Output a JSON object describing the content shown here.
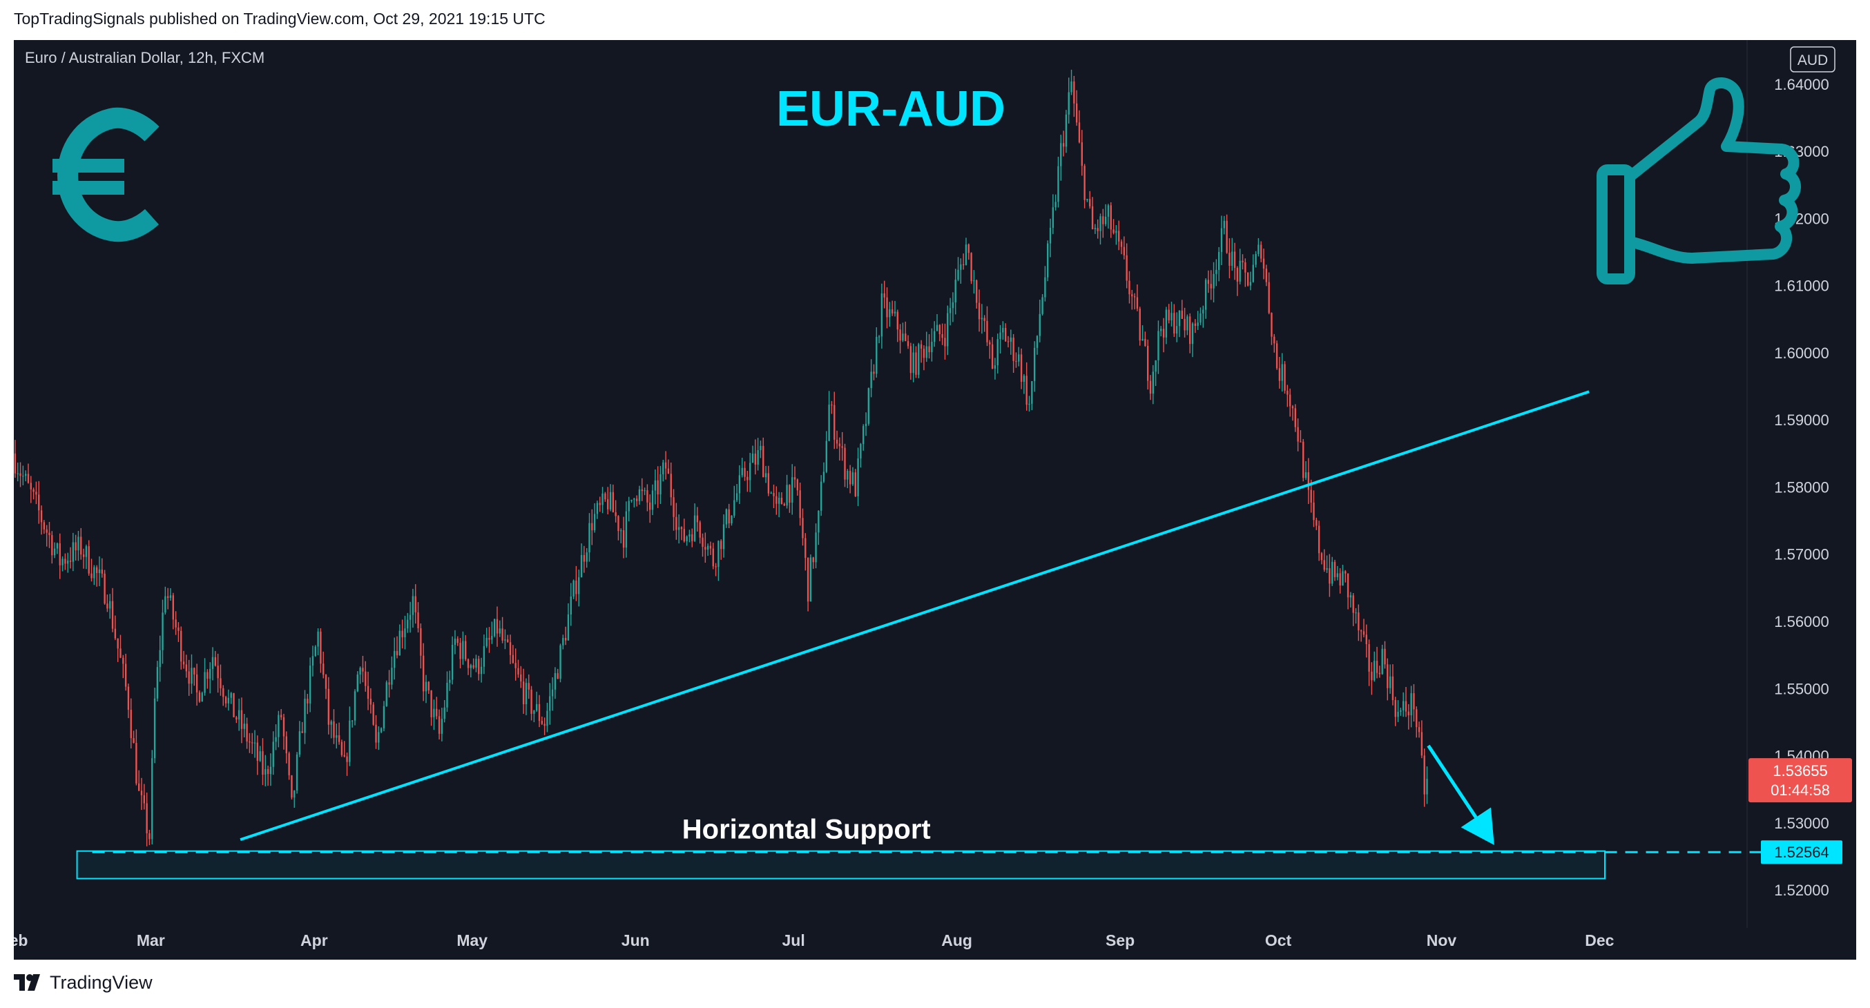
{
  "header": {
    "published": "TopTradingSignals published on TradingView.com, Oct 29, 2021 19:15 UTC"
  },
  "footer": {
    "brand": "TradingView"
  },
  "colors": {
    "background": "#131722",
    "up": "#26a69a",
    "down": "#ef5350",
    "accent": "#00e5ff",
    "icon": "#0e9aa0",
    "axis_text": "#d1d4dc"
  },
  "icons": [
    "euro-icon",
    "thumbs-up-icon",
    "tradingview-logo-icon"
  ],
  "chart_data": {
    "type": "candlestick",
    "symbol_label": "Euro / Australian Dollar, 12h, FXCM",
    "title": "EUR-AUD",
    "currency_badge": "AUD",
    "ylim": [
      1.516,
      1.6445
    ],
    "y_ticks": [
      "1.52000",
      "1.53000",
      "1.54000",
      "1.55000",
      "1.56000",
      "1.57000",
      "1.58000",
      "1.59000",
      "1.60000",
      "1.61000",
      "1.62000",
      "1.63000",
      "1.64000"
    ],
    "x_ticks": [
      {
        "label": "Feb",
        "t": 0
      },
      {
        "label": "Mar",
        "t": 26
      },
      {
        "label": "Apr",
        "t": 57
      },
      {
        "label": "May",
        "t": 87
      },
      {
        "label": "Jun",
        "t": 118
      },
      {
        "label": "Jul",
        "t": 148
      },
      {
        "label": "Aug",
        "t": 179
      },
      {
        "label": "Sep",
        "t": 210
      },
      {
        "label": "Oct",
        "t": 240
      },
      {
        "label": "Nov",
        "t": 271
      },
      {
        "label": "Dec",
        "t": 301
      }
    ],
    "x_days_visible": 329,
    "price_path": [
      [
        0,
        1.585
      ],
      [
        4,
        1.578
      ],
      [
        9,
        1.569
      ],
      [
        13,
        1.571
      ],
      [
        18,
        1.564
      ],
      [
        22,
        1.548
      ],
      [
        24,
        1.534
      ],
      [
        26,
        1.528
      ],
      [
        27,
        1.548
      ],
      [
        29,
        1.565
      ],
      [
        32,
        1.556
      ],
      [
        35,
        1.549
      ],
      [
        38,
        1.555
      ],
      [
        41,
        1.548
      ],
      [
        45,
        1.542
      ],
      [
        48,
        1.537
      ],
      [
        51,
        1.546
      ],
      [
        53,
        1.532
      ],
      [
        55,
        1.545
      ],
      [
        58,
        1.558
      ],
      [
        60,
        1.545
      ],
      [
        63,
        1.538
      ],
      [
        66,
        1.555
      ],
      [
        69,
        1.541
      ],
      [
        72,
        1.555
      ],
      [
        76,
        1.563
      ],
      [
        78,
        1.551
      ],
      [
        81,
        1.543
      ],
      [
        84,
        1.557
      ],
      [
        88,
        1.553
      ],
      [
        92,
        1.559
      ],
      [
        95,
        1.553
      ],
      [
        98,
        1.548
      ],
      [
        101,
        1.545
      ],
      [
        104,
        1.555
      ],
      [
        107,
        1.566
      ],
      [
        110,
        1.575
      ],
      [
        113,
        1.578
      ],
      [
        116,
        1.573
      ],
      [
        118,
        1.58
      ],
      [
        121,
        1.577
      ],
      [
        124,
        1.583
      ],
      [
        127,
        1.572
      ],
      [
        130,
        1.575
      ],
      [
        133,
        1.569
      ],
      [
        136,
        1.576
      ],
      [
        139,
        1.582
      ],
      [
        142,
        1.585
      ],
      [
        145,
        1.576
      ],
      [
        147,
        1.58
      ],
      [
        149,
        1.579
      ],
      [
        151,
        1.565
      ],
      [
        153,
        1.575
      ],
      [
        155,
        1.592
      ],
      [
        158,
        1.583
      ],
      [
        160,
        1.58
      ],
      [
        162,
        1.59
      ],
      [
        165,
        1.607
      ],
      [
        168,
        1.604
      ],
      [
        171,
        1.598
      ],
      [
        174,
        1.602
      ],
      [
        177,
        1.603
      ],
      [
        179,
        1.61
      ],
      [
        181,
        1.616
      ],
      [
        184,
        1.605
      ],
      [
        186,
        1.598
      ],
      [
        188,
        1.603
      ],
      [
        191,
        1.599
      ],
      [
        193,
        1.592
      ],
      [
        195,
        1.606
      ],
      [
        197,
        1.617
      ],
      [
        199,
        1.63
      ],
      [
        201,
        1.64
      ],
      [
        203,
        1.627
      ],
      [
        205,
        1.618
      ],
      [
        208,
        1.62
      ],
      [
        211,
        1.613
      ],
      [
        214,
        1.603
      ],
      [
        216,
        1.596
      ],
      [
        218,
        1.604
      ],
      [
        221,
        1.605
      ],
      [
        224,
        1.603
      ],
      [
        227,
        1.61
      ],
      [
        230,
        1.618
      ],
      [
        232,
        1.612
      ],
      [
        235,
        1.611
      ],
      [
        237,
        1.616
      ],
      [
        240,
        1.598
      ],
      [
        242,
        1.595
      ],
      [
        244,
        1.588
      ],
      [
        246,
        1.578
      ],
      [
        248,
        1.571
      ],
      [
        250,
        1.567
      ],
      [
        253,
        1.566
      ],
      [
        255,
        1.56
      ],
      [
        258,
        1.552
      ],
      [
        260,
        1.555
      ],
      [
        263,
        1.546
      ],
      [
        266,
        1.548
      ],
      [
        268,
        1.535
      ]
    ],
    "candle_step_days": 0.5,
    "last_price": "1.53655",
    "countdown": "01:44:58",
    "trendline": {
      "start": [
        43,
        1.5275
      ],
      "end": [
        299,
        1.5942
      ]
    },
    "support": {
      "label": "Horizontal Support",
      "price": 1.52564,
      "price_label": "1.52564",
      "zone": [
        1.5217,
        1.5258
      ],
      "t_range": [
        12,
        302
      ]
    },
    "arrow": {
      "from": [
        268.5,
        1.5415
      ],
      "to": [
        281,
        1.5267
      ]
    }
  }
}
